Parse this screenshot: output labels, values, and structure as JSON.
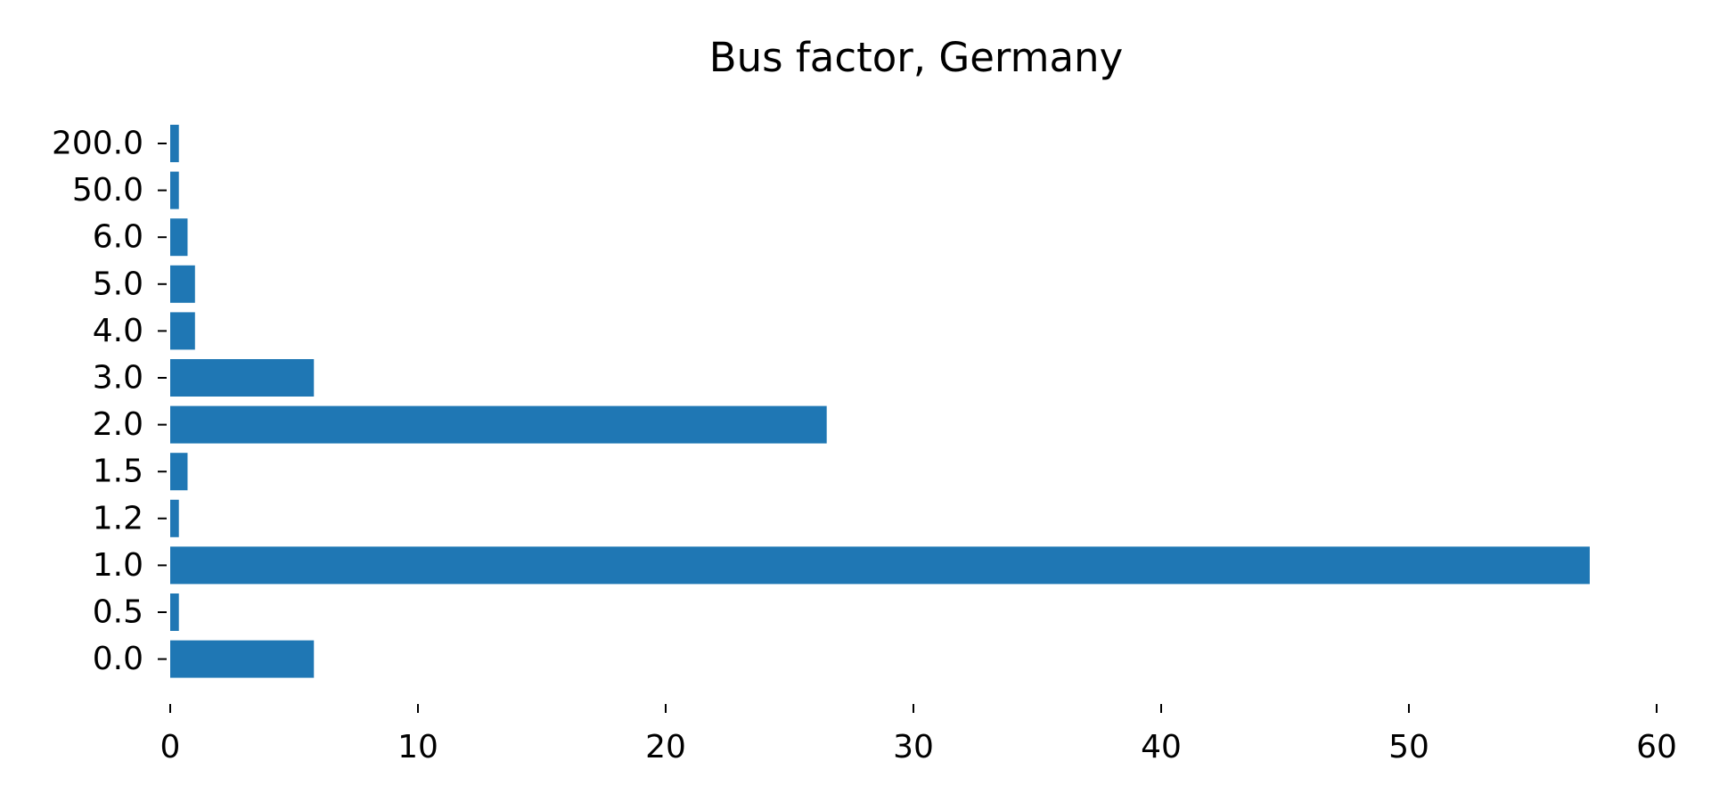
{
  "chart_data": {
    "type": "bar",
    "orientation": "horizontal",
    "title": "Bus factor, Germany",
    "xlabel": "",
    "ylabel": "",
    "categories": [
      "0.0",
      "0.5",
      "1.0",
      "1.2",
      "1.5",
      "2.0",
      "3.0",
      "4.0",
      "5.0",
      "6.0",
      "50.0",
      "200.0"
    ],
    "values": [
      5.8,
      0.35,
      57.3,
      0.35,
      0.7,
      26.5,
      5.8,
      1.0,
      1.0,
      0.7,
      0.35,
      0.35
    ],
    "xlim": [
      0,
      60
    ],
    "xticks": [
      "0",
      "10",
      "20",
      "30",
      "40",
      "50",
      "60"
    ],
    "grid": false,
    "bar_color": "#1f77b4"
  }
}
